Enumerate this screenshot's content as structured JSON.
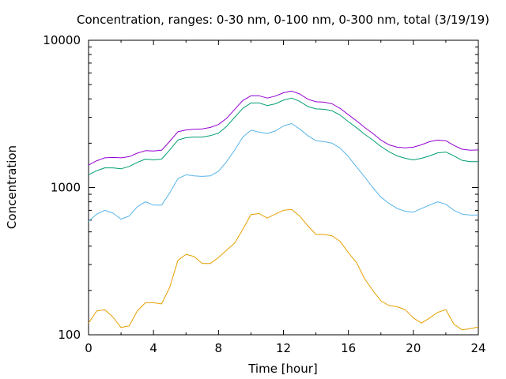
{
  "chart_data": {
    "type": "line",
    "title": "Concentration, ranges: 0-30 nm, 0-100 nm, 0-300 nm, total (3/19/19)",
    "xlabel": "Time [hour]",
    "ylabel": "Concentration",
    "xlim": [
      0,
      24
    ],
    "ylim": [
      100,
      10000
    ],
    "yscale": "log",
    "grid": false,
    "legend": "none",
    "x_ticks": [
      "0",
      "4",
      "8",
      "12",
      "16",
      "20",
      "24"
    ],
    "y_ticks": [
      "100",
      "1000",
      "10000"
    ],
    "x": [
      0,
      0.5,
      1,
      1.5,
      2,
      2.5,
      3,
      3.5,
      4,
      4.5,
      5,
      5.5,
      6,
      6.5,
      7,
      7.5,
      8,
      8.5,
      9,
      9.5,
      10,
      10.5,
      11,
      11.5,
      12,
      12.5,
      13,
      13.5,
      14,
      14.5,
      15,
      15.5,
      16,
      16.5,
      17,
      17.5,
      18,
      18.5,
      19,
      19.5,
      20,
      20.5,
      21,
      21.5,
      22,
      22.5,
      23,
      23.5,
      24
    ],
    "series": [
      {
        "color": "#e69f00",
        "values": [
          120,
          145,
          148,
          132,
          112,
          115,
          145,
          165,
          165,
          162,
          210,
          320,
          352,
          340,
          305,
          305,
          335,
          375,
          420,
          520,
          655,
          665,
          620,
          660,
          700,
          710,
          640,
          550,
          480,
          480,
          470,
          430,
          360,
          310,
          240,
          200,
          170,
          158,
          155,
          148,
          130,
          120,
          130,
          142,
          148,
          118,
          108,
          110,
          113
        ]
      },
      {
        "color": "#56b4e9",
        "values": [
          590,
          660,
          700,
          670,
          610,
          640,
          740,
          800,
          760,
          760,
          920,
          1150,
          1220,
          1200,
          1190,
          1200,
          1290,
          1500,
          1800,
          2200,
          2450,
          2380,
          2330,
          2420,
          2620,
          2720,
          2500,
          2250,
          2080,
          2050,
          2000,
          1850,
          1620,
          1380,
          1180,
          1000,
          860,
          780,
          720,
          690,
          680,
          720,
          760,
          800,
          770,
          700,
          660,
          650,
          650
        ]
      },
      {
        "color": "#009e73",
        "values": [
          1220,
          1300,
          1360,
          1360,
          1340,
          1390,
          1480,
          1560,
          1540,
          1560,
          1800,
          2100,
          2180,
          2200,
          2200,
          2250,
          2340,
          2600,
          3000,
          3450,
          3750,
          3750,
          3600,
          3700,
          3920,
          4050,
          3850,
          3550,
          3420,
          3400,
          3320,
          3100,
          2800,
          2550,
          2300,
          2100,
          1900,
          1750,
          1640,
          1580,
          1540,
          1580,
          1640,
          1720,
          1740,
          1640,
          1530,
          1500,
          1500
        ]
      },
      {
        "color": "#9400d3",
        "values": [
          1420,
          1520,
          1590,
          1600,
          1590,
          1620,
          1710,
          1780,
          1770,
          1790,
          2060,
          2390,
          2460,
          2490,
          2500,
          2560,
          2680,
          2950,
          3400,
          3900,
          4200,
          4200,
          4050,
          4180,
          4400,
          4520,
          4320,
          3980,
          3820,
          3800,
          3700,
          3440,
          3120,
          2840,
          2560,
          2330,
          2100,
          1950,
          1880,
          1860,
          1880,
          1950,
          2050,
          2100,
          2080,
          1930,
          1820,
          1790,
          1800
        ]
      }
    ]
  }
}
